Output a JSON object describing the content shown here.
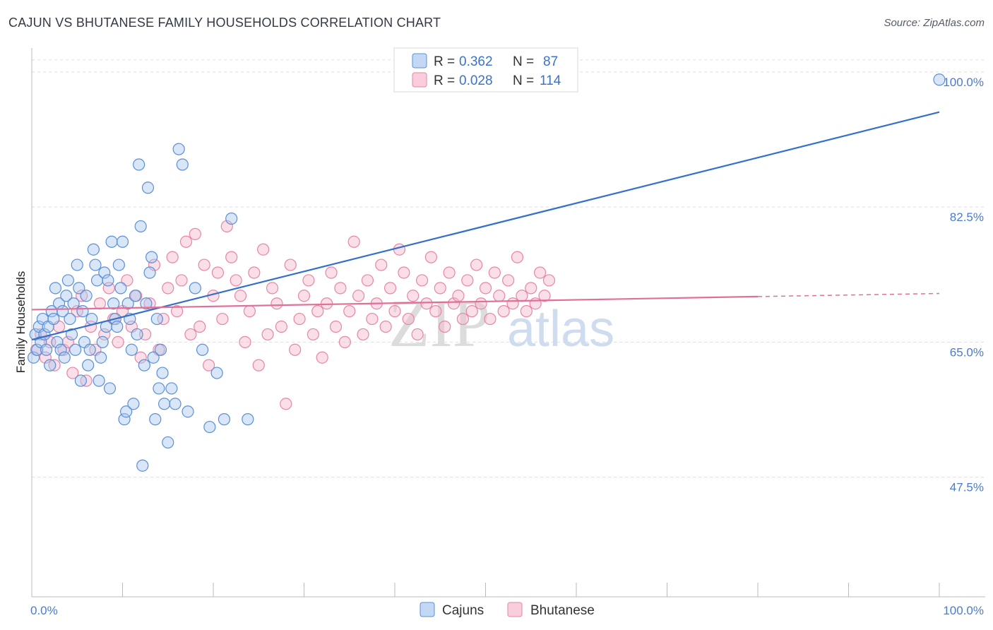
{
  "title": "CAJUN VS BHUTANESE FAMILY HOUSEHOLDS CORRELATION CHART",
  "source": "Source: ZipAtlas.com",
  "watermark": {
    "zip": "ZIP",
    "atlas": "atlas"
  },
  "colors": {
    "cajun_fill": "#a9c8f0",
    "cajun_stroke": "#5b8fd6",
    "cajun_line": "#3370c8",
    "bhutanese_fill": "#f7b8cc",
    "bhutanese_stroke": "#e786a5",
    "bhutanese_line": "#e0709a",
    "grid": "#dddddd",
    "tick_text": "#4a7bd0"
  },
  "legend": {
    "cajun": {
      "r_label": "R =",
      "r_value": "0.362",
      "n_label": "N =",
      "n_value": "87"
    },
    "bhutanese": {
      "r_label": "R =",
      "r_value": "0.028",
      "n_label": "N =",
      "n_value": "114"
    }
  },
  "chart_data": {
    "type": "scatter",
    "title": "CAJUN VS BHUTANESE FAMILY HOUSEHOLDS CORRELATION CHART",
    "xlabel": "",
    "ylabel": "Family Households",
    "xlim": [
      0,
      100
    ],
    "ylim": [
      32,
      102
    ],
    "x_tick_labels": [
      "0.0%",
      "100.0%"
    ],
    "y_ticks": [
      {
        "value": 47.5,
        "label": "47.5%"
      },
      {
        "value": 65.0,
        "label": "65.0%"
      },
      {
        "value": 82.5,
        "label": "82.5%"
      },
      {
        "value": 100.0,
        "label": "100.0%"
      }
    ],
    "grid": "horizontal dashed",
    "legend_position": "top-center",
    "series": [
      {
        "name": "Cajuns",
        "R": 0.362,
        "N": 87,
        "trend": {
          "x0": 0,
          "y0": 65.3,
          "x1": 100,
          "y1": 94.8
        },
        "points": [
          [
            0.2,
            63
          ],
          [
            0.4,
            66
          ],
          [
            0.6,
            64
          ],
          [
            0.8,
            67
          ],
          [
            1.0,
            65
          ],
          [
            1.2,
            68
          ],
          [
            1.4,
            66
          ],
          [
            1.6,
            64
          ],
          [
            1.8,
            67
          ],
          [
            2.0,
            62
          ],
          [
            2.2,
            69
          ],
          [
            2.4,
            68
          ],
          [
            2.6,
            72
          ],
          [
            2.8,
            65
          ],
          [
            3.0,
            70
          ],
          [
            3.2,
            64
          ],
          [
            3.4,
            69
          ],
          [
            3.6,
            63
          ],
          [
            3.8,
            71
          ],
          [
            4.0,
            73
          ],
          [
            4.2,
            68
          ],
          [
            4.4,
            66
          ],
          [
            4.6,
            70
          ],
          [
            4.8,
            64
          ],
          [
            5.0,
            75
          ],
          [
            5.2,
            72
          ],
          [
            5.4,
            60
          ],
          [
            5.6,
            69
          ],
          [
            5.8,
            65
          ],
          [
            6.0,
            71
          ],
          [
            6.2,
            62
          ],
          [
            6.4,
            64
          ],
          [
            6.6,
            68
          ],
          [
            6.8,
            77
          ],
          [
            7.0,
            75
          ],
          [
            7.2,
            73
          ],
          [
            7.4,
            60
          ],
          [
            7.6,
            63
          ],
          [
            7.8,
            65
          ],
          [
            8.0,
            74
          ],
          [
            8.2,
            67
          ],
          [
            8.4,
            73
          ],
          [
            8.6,
            59
          ],
          [
            8.8,
            78
          ],
          [
            9.0,
            70
          ],
          [
            9.2,
            68
          ],
          [
            9.4,
            67
          ],
          [
            9.6,
            75
          ],
          [
            9.8,
            72
          ],
          [
            10.0,
            78
          ],
          [
            10.2,
            55
          ],
          [
            10.4,
            56
          ],
          [
            10.6,
            70
          ],
          [
            10.8,
            68
          ],
          [
            11.0,
            64
          ],
          [
            11.2,
            57
          ],
          [
            11.4,
            71
          ],
          [
            11.6,
            66
          ],
          [
            11.8,
            88
          ],
          [
            12.0,
            80
          ],
          [
            12.2,
            49
          ],
          [
            12.4,
            62
          ],
          [
            12.6,
            70
          ],
          [
            12.8,
            85
          ],
          [
            13.0,
            74
          ],
          [
            13.2,
            76
          ],
          [
            13.4,
            63
          ],
          [
            13.6,
            55
          ],
          [
            13.8,
            68
          ],
          [
            14.0,
            59
          ],
          [
            14.2,
            64
          ],
          [
            14.4,
            61
          ],
          [
            14.6,
            57
          ],
          [
            15.0,
            52
          ],
          [
            15.4,
            59
          ],
          [
            15.8,
            57
          ],
          [
            16.2,
            90
          ],
          [
            16.6,
            88
          ],
          [
            17.2,
            56
          ],
          [
            18.0,
            72
          ],
          [
            18.8,
            64
          ],
          [
            19.6,
            54
          ],
          [
            20.4,
            61
          ],
          [
            21.2,
            55
          ],
          [
            22.0,
            81
          ],
          [
            23.8,
            55
          ],
          [
            100,
            99
          ]
        ]
      },
      {
        "name": "Bhutanese",
        "R": 0.028,
        "N": 114,
        "trend": {
          "x0": 0,
          "y0": 69.2,
          "x1": 80,
          "y1": 70.9
        },
        "trend_dashed_to": {
          "x1": 100,
          "y1": 71.3
        },
        "points": [
          [
            0.5,
            64
          ],
          [
            1.0,
            66
          ],
          [
            1.5,
            63
          ],
          [
            2.0,
            65
          ],
          [
            2.5,
            62
          ],
          [
            3.0,
            67
          ],
          [
            3.5,
            64
          ],
          [
            4.0,
            65
          ],
          [
            4.5,
            61
          ],
          [
            5.0,
            69
          ],
          [
            5.5,
            71
          ],
          [
            6.0,
            60
          ],
          [
            6.5,
            67
          ],
          [
            7.0,
            64
          ],
          [
            7.5,
            70
          ],
          [
            8.0,
            66
          ],
          [
            8.5,
            72
          ],
          [
            9.0,
            68
          ],
          [
            9.5,
            65
          ],
          [
            10.0,
            69
          ],
          [
            10.5,
            73
          ],
          [
            11.0,
            67
          ],
          [
            11.5,
            71
          ],
          [
            12.0,
            63
          ],
          [
            12.5,
            66
          ],
          [
            13.0,
            70
          ],
          [
            13.5,
            75
          ],
          [
            14.0,
            64
          ],
          [
            14.5,
            68
          ],
          [
            15.0,
            72
          ],
          [
            15.5,
            76
          ],
          [
            16.0,
            69
          ],
          [
            16.5,
            73
          ],
          [
            17.0,
            78
          ],
          [
            17.5,
            66
          ],
          [
            18.0,
            79
          ],
          [
            18.5,
            67
          ],
          [
            19.0,
            75
          ],
          [
            19.5,
            62
          ],
          [
            20.0,
            71
          ],
          [
            20.5,
            74
          ],
          [
            21.0,
            68
          ],
          [
            21.5,
            80
          ],
          [
            22.0,
            76
          ],
          [
            22.5,
            73
          ],
          [
            23.0,
            71
          ],
          [
            23.5,
            65
          ],
          [
            24.0,
            69
          ],
          [
            24.5,
            74
          ],
          [
            25.0,
            62
          ],
          [
            25.5,
            77
          ],
          [
            26.0,
            66
          ],
          [
            26.5,
            72
          ],
          [
            27.0,
            70
          ],
          [
            27.5,
            67
          ],
          [
            28.0,
            57
          ],
          [
            28.5,
            75
          ],
          [
            29.0,
            64
          ],
          [
            29.5,
            68
          ],
          [
            30.0,
            71
          ],
          [
            30.5,
            73
          ],
          [
            31.0,
            66
          ],
          [
            31.5,
            69
          ],
          [
            32.0,
            63
          ],
          [
            32.5,
            70
          ],
          [
            33.0,
            74
          ],
          [
            33.5,
            67
          ],
          [
            34.0,
            72
          ],
          [
            34.5,
            65
          ],
          [
            35.0,
            69
          ],
          [
            35.5,
            78
          ],
          [
            36.0,
            71
          ],
          [
            36.5,
            66
          ],
          [
            37.0,
            73
          ],
          [
            37.5,
            68
          ],
          [
            38.0,
            70
          ],
          [
            38.5,
            75
          ],
          [
            39.0,
            67
          ],
          [
            39.5,
            72
          ],
          [
            40.0,
            69
          ],
          [
            40.5,
            77
          ],
          [
            41.0,
            74
          ],
          [
            41.5,
            68
          ],
          [
            42.0,
            71
          ],
          [
            42.5,
            66
          ],
          [
            43.0,
            73
          ],
          [
            43.5,
            70
          ],
          [
            44.0,
            76
          ],
          [
            44.5,
            69
          ],
          [
            45.0,
            72
          ],
          [
            45.5,
            67
          ],
          [
            46.0,
            74
          ],
          [
            46.5,
            70
          ],
          [
            47.0,
            71
          ],
          [
            47.5,
            68
          ],
          [
            48.0,
            73
          ],
          [
            48.5,
            69
          ],
          [
            49.0,
            75
          ],
          [
            49.5,
            70
          ],
          [
            50.0,
            72
          ],
          [
            50.5,
            68
          ],
          [
            51.0,
            74
          ],
          [
            51.5,
            71
          ],
          [
            52.0,
            69
          ],
          [
            52.5,
            73
          ],
          [
            53.0,
            70
          ],
          [
            53.5,
            76
          ],
          [
            54.0,
            71
          ],
          [
            54.5,
            69
          ],
          [
            55.0,
            72
          ],
          [
            55.5,
            70
          ],
          [
            56.0,
            74
          ],
          [
            56.5,
            71
          ],
          [
            57.0,
            73
          ]
        ]
      }
    ]
  },
  "bottom_legend": {
    "cajun_label": "Cajuns",
    "bhutanese_label": "Bhutanese"
  }
}
